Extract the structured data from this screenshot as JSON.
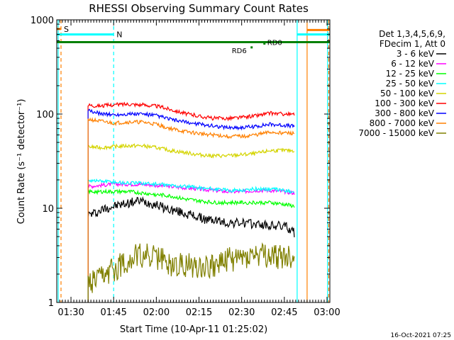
{
  "chart_data": {
    "type": "line",
    "title": "RHESSI Observing Summary Count Rates",
    "xlabel": "Start Time (10-Apr-11 01:25:02)",
    "ylabel": "Count Rate (s⁻¹ detector⁻¹)",
    "x_unit": "minutes since 01:25:02",
    "xlim": [
      0,
      96
    ],
    "ylim": [
      1,
      1000
    ],
    "yscale": "log",
    "x_ticks": [
      {
        "label": "01:30",
        "value": 5
      },
      {
        "label": "01:45",
        "value": 20
      },
      {
        "label": "02:00",
        "value": 35
      },
      {
        "label": "02:15",
        "value": 50
      },
      {
        "label": "02:30",
        "value": 65
      },
      {
        "label": "02:45",
        "value": 80
      },
      {
        "label": "03:00",
        "value": 95
      }
    ],
    "y_ticks": [
      {
        "label": "1",
        "value": 1
      },
      {
        "label": "10",
        "value": 10
      },
      {
        "label": "100",
        "value": 100
      },
      {
        "label": "1000",
        "value": 1000
      }
    ],
    "legend_header": [
      "Det 1,3,4,5,6,9,",
      "FDecim 1, Att 0"
    ],
    "series": [
      {
        "name": "3 - 6 keV",
        "color": "#000000",
        "x": [
          11,
          14,
          17,
          20,
          23,
          26,
          29,
          32,
          35,
          38,
          41,
          44,
          47,
          50,
          53,
          56,
          59,
          62,
          65,
          68,
          71,
          74,
          77,
          80,
          82,
          83.5
        ],
        "y": [
          8.5,
          9,
          10,
          10.5,
          11,
          11.5,
          12,
          11.5,
          11,
          10,
          9.5,
          9,
          8.5,
          8,
          7.5,
          7.5,
          7,
          7,
          7,
          6.8,
          6.8,
          6.5,
          6.5,
          6.5,
          6,
          5.5
        ]
      },
      {
        "name": "6 - 12 keV",
        "color": "#ff00ff",
        "x": [
          11,
          15,
          20,
          25,
          30,
          35,
          40,
          45,
          50,
          55,
          60,
          65,
          70,
          75,
          80,
          83.5
        ],
        "y": [
          17,
          17.5,
          18,
          18,
          18,
          17.5,
          17,
          16.5,
          16,
          15.5,
          15,
          15,
          15.5,
          15.5,
          15,
          14.5
        ]
      },
      {
        "name": "12 - 25 keV",
        "color": "#00ff00",
        "x": [
          11,
          15,
          20,
          25,
          30,
          35,
          40,
          45,
          50,
          55,
          60,
          65,
          70,
          75,
          80,
          83.5
        ],
        "y": [
          15,
          15,
          15,
          15,
          14.5,
          14,
          13.5,
          12.5,
          12,
          11.5,
          11.5,
          11.5,
          11.5,
          11.5,
          11,
          10.5
        ]
      },
      {
        "name": "25 - 50 keV",
        "color": "#00ffff",
        "x": [
          11,
          15,
          20,
          25,
          30,
          35,
          40,
          45,
          50,
          55,
          60,
          65,
          70,
          75,
          80,
          83.5
        ],
        "y": [
          20,
          19.5,
          19,
          18.5,
          18.5,
          18,
          17.5,
          17,
          16.5,
          16,
          15.5,
          15.5,
          16,
          16,
          15.5,
          15
        ]
      },
      {
        "name": "50 - 100 keV",
        "color": "#d4d400",
        "x": [
          11,
          15,
          20,
          25,
          30,
          35,
          40,
          45,
          50,
          55,
          60,
          65,
          70,
          75,
          80,
          83.5
        ],
        "y": [
          45,
          44,
          45,
          46,
          46,
          44,
          41,
          39,
          37,
          36,
          36,
          37,
          38,
          41,
          41,
          41
        ]
      },
      {
        "name": "100 - 300 keV",
        "color": "#ff0000",
        "x": [
          11,
          15,
          20,
          25,
          30,
          35,
          40,
          45,
          50,
          55,
          60,
          65,
          70,
          75,
          80,
          83.5
        ],
        "y": [
          125,
          122,
          125,
          128,
          125,
          122,
          112,
          102,
          95,
          90,
          90,
          92,
          96,
          102,
          100,
          98
        ]
      },
      {
        "name": "300 - 800 keV",
        "color": "#0000ff",
        "x": [
          11,
          15,
          20,
          25,
          30,
          35,
          40,
          45,
          50,
          55,
          60,
          65,
          70,
          75,
          80,
          83.5
        ],
        "y": [
          108,
          102,
          98,
          100,
          100,
          96,
          88,
          82,
          78,
          75,
          72,
          72,
          74,
          78,
          76,
          74
        ]
      },
      {
        "name": "800 - 7000 keV",
        "color": "#ff8000",
        "x": [
          11,
          15,
          20,
          25,
          30,
          35,
          40,
          45,
          50,
          55,
          60,
          65,
          70,
          75,
          80,
          83.5
        ],
        "y": [
          88,
          84,
          80,
          82,
          82,
          78,
          70,
          65,
          62,
          60,
          58,
          58,
          60,
          64,
          63,
          62
        ]
      },
      {
        "name": "7000 - 15000 keV",
        "color": "#808000",
        "x": [
          11,
          15,
          20,
          25,
          30,
          35,
          40,
          45,
          50,
          55,
          60,
          65,
          70,
          75,
          80,
          83.5
        ],
        "y": [
          1.5,
          1.7,
          2.2,
          2.8,
          3.2,
          3,
          2.5,
          2.5,
          2.5,
          2.5,
          2.8,
          3,
          3.2,
          3,
          3,
          3
        ]
      }
    ],
    "flags": [
      {
        "label": "S",
        "color": "#ff8000",
        "y": 800,
        "x_start": 0,
        "x_end": 1.5
      },
      {
        "label": "N",
        "color": "#00ffff",
        "y": 700,
        "x_start": 0,
        "x_end": 20
      },
      {
        "label": "",
        "color": "#00ffff",
        "y": 700,
        "x_start": 84.5,
        "x_end": 96
      },
      {
        "label": "",
        "color": "#ff8000",
        "y": 780,
        "x_start": 88,
        "x_end": 96
      },
      {
        "label": "",
        "color": "#008000",
        "y": 580,
        "x_start": 0,
        "x_end": 96
      }
    ],
    "flag_marks": [
      {
        "label": "RD6",
        "x": 68.5,
        "y": 510
      },
      {
        "label": "RD0",
        "x": 73,
        "y": 560
      }
    ],
    "vlines": [
      {
        "x": 0.5,
        "color": "#00ffff",
        "dashed": false
      },
      {
        "x": 1.5,
        "color": "#ff8000",
        "dashed": true
      },
      {
        "x": 20,
        "color": "#00ffff",
        "dashed": true
      },
      {
        "x": 84.5,
        "color": "#00ffff",
        "dashed": false
      },
      {
        "x": 88,
        "color": "#ff8000",
        "dashed": false
      },
      {
        "x": 95.2,
        "color": "#00ffff",
        "dashed": false
      },
      {
        "x": 95.6,
        "color": "#ff8000",
        "dashed": true
      }
    ],
    "timestamp": "16-Oct-2021 07:25"
  }
}
